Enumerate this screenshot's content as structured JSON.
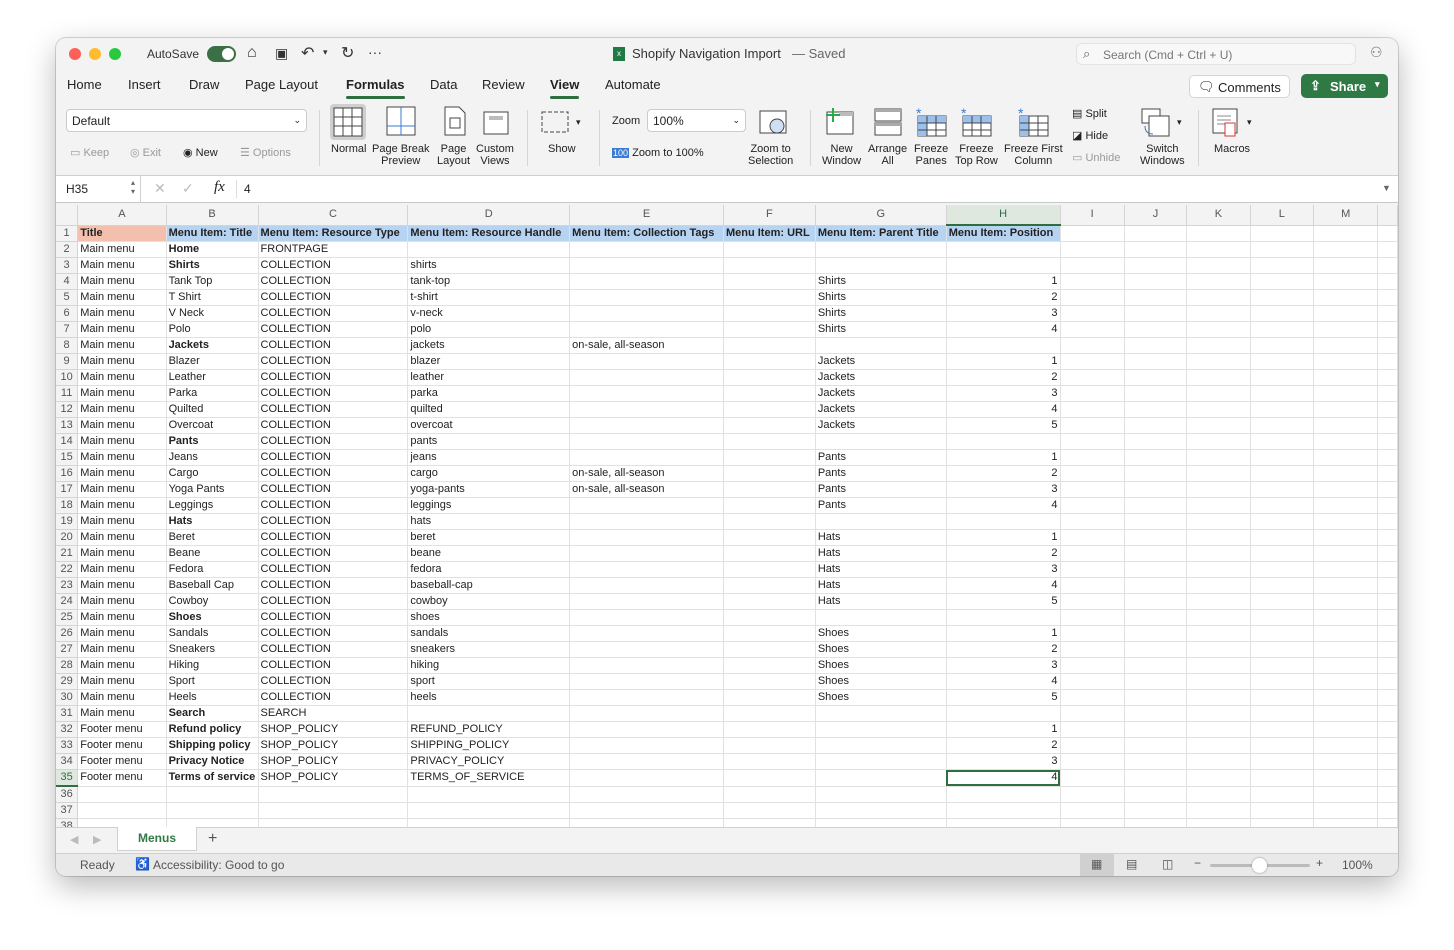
{
  "titlebar": {
    "autosave": "AutoSave",
    "doc_title": "Shopify Navigation Import",
    "saved": "— Saved",
    "search_placeholder": "Search (Cmd + Ctrl + U)"
  },
  "tabs": [
    "Home",
    "Insert",
    "Draw",
    "Page Layout",
    "Formulas",
    "Data",
    "Review",
    "View",
    "Automate"
  ],
  "active_tab": "View",
  "buttons": {
    "comments": "Comments",
    "share": "Share"
  },
  "ribbon": {
    "sheet_view": "Default",
    "keep": "Keep",
    "exit": "Exit",
    "new": "New",
    "options": "Options",
    "normal": "Normal",
    "page_break_1": "Page Break",
    "page_break_2": "Preview",
    "page_layout_1": "Page",
    "page_layout_2": "Layout",
    "custom_1": "Custom",
    "custom_2": "Views",
    "show": "Show",
    "zoom_label": "Zoom",
    "zoom_value": "100%",
    "zoom100": "Zoom to 100%",
    "zoom_sel_1": "Zoom to",
    "zoom_sel_2": "Selection",
    "new_window_1": "New",
    "new_window_2": "Window",
    "arrange_1": "Arrange",
    "arrange_2": "All",
    "freeze_1": "Freeze",
    "freeze_2": "Panes",
    "freeze_top_1": "Freeze",
    "freeze_top_2": "Top Row",
    "freeze_first_1": "Freeze First",
    "freeze_first_2": "Column",
    "split": "Split",
    "hide": "Hide",
    "unhide": "Unhide",
    "switch_1": "Switch",
    "switch_2": "Windows",
    "macros": "Macros"
  },
  "formula_bar": {
    "name_box": "H35",
    "fx": "fx",
    "value": "4"
  },
  "columns": [
    "A",
    "B",
    "C",
    "D",
    "E",
    "F",
    "G",
    "H",
    "I",
    "J",
    "K",
    "L",
    "M"
  ],
  "rows": [
    {
      "c": [
        "Title",
        "Menu Item: Title",
        "Menu Item: Resource Type",
        "Menu Item: Resource Handle",
        "Menu Item: Collection Tags",
        "Menu Item: URL",
        "Menu Item: Parent Title",
        "Menu Item: Position"
      ]
    },
    {
      "c": [
        "Main menu",
        "Home",
        "FRONTPAGE",
        "",
        "",
        "",
        "",
        ""
      ],
      "bold": true
    },
    {
      "c": [
        "Main menu",
        "Shirts",
        "COLLECTION",
        "shirts",
        "",
        "",
        "",
        ""
      ],
      "bold": true
    },
    {
      "c": [
        "Main menu",
        "Tank Top",
        "COLLECTION",
        "tank-top",
        "",
        "",
        "Shirts",
        "1"
      ]
    },
    {
      "c": [
        "Main menu",
        "T Shirt",
        "COLLECTION",
        "t-shirt",
        "",
        "",
        "Shirts",
        "2"
      ]
    },
    {
      "c": [
        "Main menu",
        "V Neck",
        "COLLECTION",
        "v-neck",
        "",
        "",
        "Shirts",
        "3"
      ]
    },
    {
      "c": [
        "Main menu",
        "Polo",
        "COLLECTION",
        "polo",
        "",
        "",
        "Shirts",
        "4"
      ]
    },
    {
      "c": [
        "Main menu",
        "Jackets",
        "COLLECTION",
        "jackets",
        "on-sale, all-season",
        "",
        "",
        ""
      ],
      "bold": true
    },
    {
      "c": [
        "Main menu",
        "Blazer",
        "COLLECTION",
        "blazer",
        "",
        "",
        "Jackets",
        "1"
      ]
    },
    {
      "c": [
        "Main menu",
        "Leather",
        "COLLECTION",
        "leather",
        "",
        "",
        "Jackets",
        "2"
      ]
    },
    {
      "c": [
        "Main menu",
        "Parka",
        "COLLECTION",
        "parka",
        "",
        "",
        "Jackets",
        "3"
      ]
    },
    {
      "c": [
        "Main menu",
        "Quilted",
        "COLLECTION",
        "quilted",
        "",
        "",
        "Jackets",
        "4"
      ]
    },
    {
      "c": [
        "Main menu",
        "Overcoat",
        "COLLECTION",
        "overcoat",
        "",
        "",
        "Jackets",
        "5"
      ]
    },
    {
      "c": [
        "Main menu",
        "Pants",
        "COLLECTION",
        "pants",
        "",
        "",
        "",
        ""
      ],
      "bold": true
    },
    {
      "c": [
        "Main menu",
        "Jeans",
        "COLLECTION",
        "jeans",
        "",
        "",
        "Pants",
        "1"
      ]
    },
    {
      "c": [
        "Main menu",
        "Cargo",
        "COLLECTION",
        "cargo",
        "on-sale, all-season",
        "",
        "Pants",
        "2"
      ]
    },
    {
      "c": [
        "Main menu",
        "Yoga Pants",
        "COLLECTION",
        "yoga-pants",
        "on-sale, all-season",
        "",
        "Pants",
        "3"
      ]
    },
    {
      "c": [
        "Main menu",
        "Leggings",
        "COLLECTION",
        "leggings",
        "",
        "",
        "Pants",
        "4"
      ]
    },
    {
      "c": [
        "Main menu",
        "Hats",
        "COLLECTION",
        "hats",
        "",
        "",
        "",
        ""
      ],
      "bold": true
    },
    {
      "c": [
        "Main menu",
        "Beret",
        "COLLECTION",
        "beret",
        "",
        "",
        "Hats",
        "1"
      ]
    },
    {
      "c": [
        "Main menu",
        "Beane",
        "COLLECTION",
        "beane",
        "",
        "",
        "Hats",
        "2"
      ]
    },
    {
      "c": [
        "Main menu",
        "Fedora",
        "COLLECTION",
        "fedora",
        "",
        "",
        "Hats",
        "3"
      ]
    },
    {
      "c": [
        "Main menu",
        "Baseball Cap",
        "COLLECTION",
        "baseball-cap",
        "",
        "",
        "Hats",
        "4"
      ]
    },
    {
      "c": [
        "Main menu",
        "Cowboy",
        "COLLECTION",
        "cowboy",
        "",
        "",
        "Hats",
        "5"
      ]
    },
    {
      "c": [
        "Main menu",
        "Shoes",
        "COLLECTION",
        "shoes",
        "",
        "",
        "",
        ""
      ],
      "bold": true
    },
    {
      "c": [
        "Main menu",
        "Sandals",
        "COLLECTION",
        "sandals",
        "",
        "",
        "Shoes",
        "1"
      ]
    },
    {
      "c": [
        "Main menu",
        "Sneakers",
        "COLLECTION",
        "sneakers",
        "",
        "",
        "Shoes",
        "2"
      ]
    },
    {
      "c": [
        "Main menu",
        "Hiking",
        "COLLECTION",
        "hiking",
        "",
        "",
        "Shoes",
        "3"
      ]
    },
    {
      "c": [
        "Main menu",
        "Sport",
        "COLLECTION",
        "sport",
        "",
        "",
        "Shoes",
        "4"
      ]
    },
    {
      "c": [
        "Main menu",
        "Heels",
        "COLLECTION",
        "heels",
        "",
        "",
        "Shoes",
        "5"
      ]
    },
    {
      "c": [
        "Main menu",
        "Search",
        "SEARCH",
        "",
        "",
        "",
        "",
        ""
      ],
      "bold": true
    },
    {
      "c": [
        "Footer menu",
        "Refund policy",
        "SHOP_POLICY",
        "REFUND_POLICY",
        "",
        "",
        "",
        "1"
      ],
      "bold": true
    },
    {
      "c": [
        "Footer menu",
        "Shipping policy",
        "SHOP_POLICY",
        "SHIPPING_POLICY",
        "",
        "",
        "",
        "2"
      ],
      "bold": true
    },
    {
      "c": [
        "Footer menu",
        "Privacy Notice",
        "SHOP_POLICY",
        "PRIVACY_POLICY",
        "",
        "",
        "",
        "3"
      ],
      "bold": true
    },
    {
      "c": [
        "Footer menu",
        "Terms of service",
        "SHOP_POLICY",
        "TERMS_OF_SERVICE",
        "",
        "",
        "",
        "4"
      ],
      "bold": true
    },
    {
      "c": [
        "",
        "",
        "",
        "",
        "",
        "",
        "",
        ""
      ]
    },
    {
      "c": [
        "",
        "",
        "",
        "",
        "",
        "",
        "",
        ""
      ]
    },
    {
      "c": [
        "",
        "",
        "",
        "",
        "",
        "",
        "",
        ""
      ]
    }
  ],
  "selected_cell": "H35",
  "sheet_tab": "Menus",
  "status": {
    "ready": "Ready",
    "accessibility": "Accessibility: Good to go",
    "zoom": "100%"
  },
  "colors": {
    "accent": "#2f6f3f",
    "header_blue": "#b7d3f2",
    "title_salmon": "#f4c0ae"
  }
}
